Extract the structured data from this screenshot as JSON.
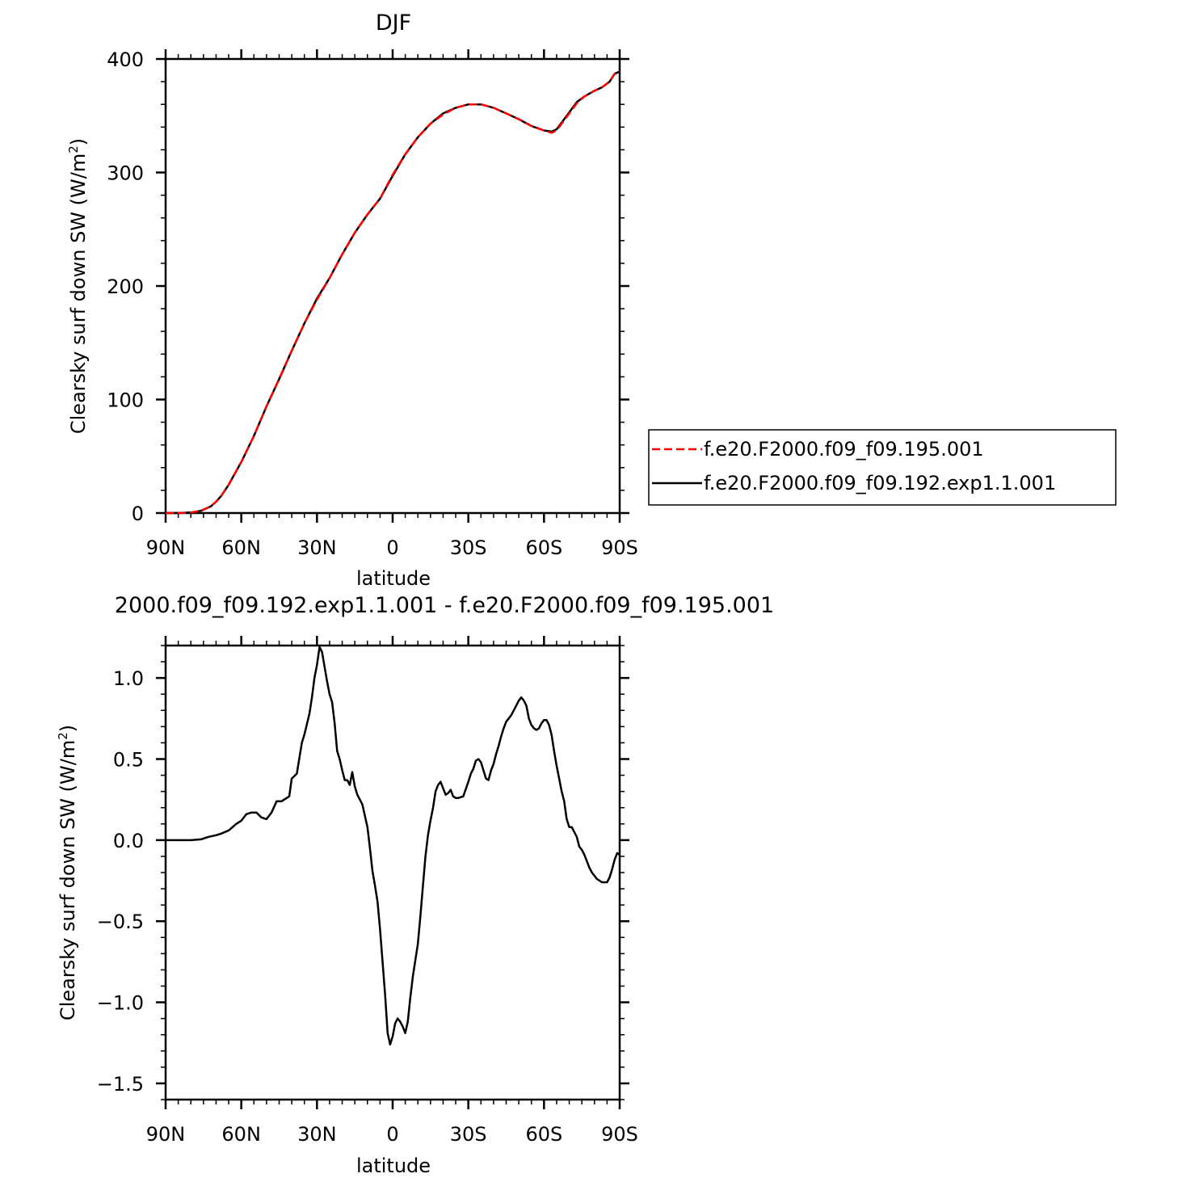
{
  "colors": {
    "model_a": "#ff0000",
    "model_b": "#000000",
    "axes": "#000000",
    "background": "#ffffff"
  },
  "chart_data": [
    {
      "type": "line",
      "title": "DJF",
      "xlabel": "latitude",
      "ylabel_base": "Clearsky surf down SW (W/m",
      "ylabel_sup": "2",
      "ylabel_close": ")",
      "xlim": [
        90,
        -90
      ],
      "ylim": [
        0,
        400
      ],
      "x_ticks": [
        {
          "value": 90,
          "label": "90N"
        },
        {
          "value": 60,
          "label": "60N"
        },
        {
          "value": 30,
          "label": "30N"
        },
        {
          "value": 0,
          "label": "0"
        },
        {
          "value": -30,
          "label": "30S"
        },
        {
          "value": -60,
          "label": "60S"
        },
        {
          "value": -90,
          "label": "90S"
        }
      ],
      "y_ticks": [
        {
          "value": 0,
          "label": "0"
        },
        {
          "value": 100,
          "label": "100"
        },
        {
          "value": 200,
          "label": "200"
        },
        {
          "value": 300,
          "label": "300"
        },
        {
          "value": 400,
          "label": "400"
        }
      ],
      "grid": false,
      "legend": "right",
      "series": [
        {
          "name": "f.e20.F2000.f09_f09.195.001",
          "style": "dashed",
          "color": "#ff0000",
          "x": [
            90,
            85,
            80,
            76,
            72,
            70,
            68,
            65,
            62,
            60,
            55,
            50,
            45,
            40,
            35,
            30,
            25,
            20,
            15,
            10,
            5,
            0,
            -5,
            -10,
            -15,
            -20,
            -25,
            -30,
            -35,
            -40,
            -45,
            -50,
            -55,
            -60,
            -63,
            -65,
            -67,
            -70,
            -73,
            -76,
            -80,
            -83,
            -86,
            -88,
            -90
          ],
          "y": [
            0,
            0,
            0.5,
            2,
            6,
            10,
            15,
            25,
            37,
            45,
            68,
            94,
            118,
            143,
            167,
            188,
            207,
            228,
            247,
            263,
            277,
            298,
            316,
            331,
            343,
            351,
            357,
            360,
            360,
            357,
            352,
            347,
            341,
            337,
            335,
            337,
            343,
            352,
            361,
            367,
            372,
            375,
            380,
            387,
            389
          ]
        },
        {
          "name": "f.e20.F2000.f09_f09.192.exp1.1.001",
          "style": "solid",
          "color": "#000000",
          "x": [
            90,
            85,
            80,
            76,
            72,
            70,
            68,
            65,
            62,
            60,
            55,
            50,
            45,
            40,
            35,
            30,
            25,
            20,
            15,
            10,
            5,
            0,
            -5,
            -10,
            -15,
            -20,
            -25,
            -30,
            -35,
            -40,
            -45,
            -50,
            -55,
            -60,
            -63,
            -65,
            -67,
            -70,
            -73,
            -76,
            -80,
            -83,
            -86,
            -88,
            -90
          ],
          "y": [
            0,
            0,
            0.5,
            2,
            6,
            10,
            15,
            25,
            37,
            45,
            68,
            94,
            118,
            143,
            167,
            189,
            207,
            228,
            247,
            263,
            277,
            297,
            316,
            331,
            343,
            352,
            357,
            360,
            360,
            357,
            352,
            347,
            341,
            337,
            336,
            338,
            344,
            353,
            362,
            367,
            372,
            375,
            380,
            387,
            389
          ]
        }
      ]
    },
    {
      "type": "line",
      "title": "2000.f09_f09.192.exp1.1.001 - f.e20.F2000.f09_f09.195.001",
      "xlabel": "latitude",
      "ylabel_base": "Clearsky surf down SW (W/m",
      "ylabel_sup": "2",
      "ylabel_close": ")",
      "xlim": [
        90,
        -90
      ],
      "ylim": [
        -1.6,
        1.2
      ],
      "x_ticks": [
        {
          "value": 90,
          "label": "90N"
        },
        {
          "value": 60,
          "label": "60N"
        },
        {
          "value": 30,
          "label": "30N"
        },
        {
          "value": 0,
          "label": "0"
        },
        {
          "value": -30,
          "label": "30S"
        },
        {
          "value": -60,
          "label": "60S"
        },
        {
          "value": -90,
          "label": "90S"
        }
      ],
      "y_ticks": [
        {
          "value": 1.0,
          "label": "1.0"
        },
        {
          "value": 0.5,
          "label": "0.5"
        },
        {
          "value": 0.0,
          "label": "0.0"
        },
        {
          "value": -0.5,
          "label": "−0.5"
        },
        {
          "value": -1.0,
          "label": "−1.0"
        },
        {
          "value": -1.5,
          "label": "−1.5"
        }
      ],
      "grid": false,
      "series": [
        {
          "style": "solid",
          "color": "#000000",
          "x": [
            90,
            85,
            80,
            76,
            73,
            70,
            68,
            65,
            62,
            60,
            58,
            56,
            54,
            52,
            50,
            48,
            46,
            44,
            43,
            41,
            40,
            38,
            36,
            35,
            33,
            32,
            31,
            30,
            29,
            28,
            27,
            26,
            25,
            24,
            23,
            22,
            21,
            20,
            19,
            18,
            17,
            16,
            15,
            14,
            12,
            10,
            9,
            8,
            7,
            6,
            5,
            4,
            3,
            2,
            1,
            0,
            -1,
            -2,
            -3,
            -4,
            -5,
            -6,
            -7,
            -8,
            -9,
            -10,
            -11,
            -12,
            -13,
            -14,
            -15,
            -16,
            -17,
            -18,
            -19,
            -20,
            -21,
            -22,
            -23,
            -24,
            -25,
            -26,
            -28,
            -30,
            -31,
            -32,
            -33,
            -34,
            -35,
            -36,
            -37,
            -38,
            -39,
            -40,
            -41,
            -42,
            -43,
            -44,
            -45,
            -46,
            -47,
            -48,
            -49,
            -50,
            -51,
            -52,
            -53,
            -54,
            -55,
            -56,
            -57,
            -58,
            -59,
            -60,
            -61,
            -62,
            -63,
            -64,
            -65,
            -66,
            -67,
            -68,
            -69,
            -70,
            -71,
            -72,
            -73,
            -74,
            -75,
            -76,
            -77,
            -78,
            -79,
            -80,
            -81,
            -82,
            -83,
            -84,
            -85,
            -86,
            -87,
            -88,
            -89,
            -90
          ],
          "y": [
            0,
            0,
            0,
            0.005,
            0.02,
            0.03,
            0.04,
            0.06,
            0.1,
            0.12,
            0.16,
            0.17,
            0.17,
            0.14,
            0.13,
            0.17,
            0.24,
            0.24,
            0.25,
            0.27,
            0.38,
            0.41,
            0.6,
            0.65,
            0.78,
            0.88,
            1.0,
            1.08,
            1.19,
            1.16,
            1.07,
            0.98,
            0.9,
            0.85,
            0.72,
            0.55,
            0.5,
            0.43,
            0.37,
            0.37,
            0.34,
            0.42,
            0.33,
            0.28,
            0.22,
            0.08,
            -0.05,
            -0.19,
            -0.28,
            -0.38,
            -0.55,
            -0.75,
            -0.95,
            -1.19,
            -1.26,
            -1.21,
            -1.13,
            -1.1,
            -1.12,
            -1.15,
            -1.19,
            -1.12,
            -0.97,
            -0.84,
            -0.74,
            -0.64,
            -0.47,
            -0.28,
            -0.1,
            0.03,
            0.12,
            0.2,
            0.3,
            0.34,
            0.36,
            0.32,
            0.28,
            0.29,
            0.31,
            0.27,
            0.26,
            0.26,
            0.27,
            0.36,
            0.41,
            0.44,
            0.49,
            0.5,
            0.48,
            0.43,
            0.38,
            0.37,
            0.43,
            0.47,
            0.53,
            0.58,
            0.64,
            0.69,
            0.73,
            0.75,
            0.77,
            0.8,
            0.83,
            0.86,
            0.88,
            0.86,
            0.83,
            0.75,
            0.71,
            0.69,
            0.68,
            0.69,
            0.72,
            0.74,
            0.74,
            0.71,
            0.65,
            0.55,
            0.46,
            0.38,
            0.3,
            0.24,
            0.13,
            0.08,
            0.08,
            0.05,
            0.02,
            -0.04,
            -0.06,
            -0.09,
            -0.13,
            -0.17,
            -0.2,
            -0.22,
            -0.24,
            -0.25,
            -0.26,
            -0.26,
            -0.26,
            -0.23,
            -0.18,
            -0.12,
            -0.08,
            -0.09
          ]
        }
      ]
    }
  ]
}
